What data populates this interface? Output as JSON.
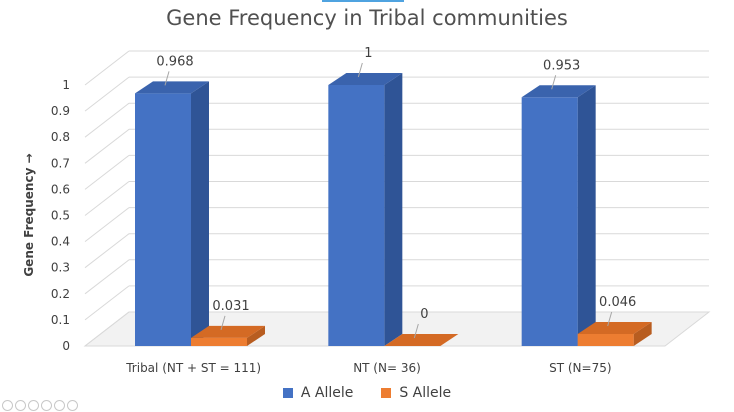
{
  "chart_data": {
    "type": "bar",
    "title": "Gene Frequency in Tribal communities",
    "xlabel": "",
    "ylabel": "Gene Frequency →",
    "categories": [
      "Tribal (NT + ST = 111)",
      "NT (N= 36)",
      "ST (N=75)"
    ],
    "series": [
      {
        "name": "A Allele",
        "values": [
          0.968,
          1,
          0.953
        ],
        "labels": [
          "0.968",
          "1",
          "0.953"
        ]
      },
      {
        "name": "S Allele",
        "values": [
          0.031,
          0,
          0.046
        ],
        "labels": [
          "0.031",
          "0",
          "0.046"
        ]
      }
    ],
    "ylim": [
      0,
      1
    ],
    "yticks": [
      "0",
      "0.1",
      "0.2",
      "0.3",
      "0.4",
      "0.5",
      "0.6",
      "0.7",
      "0.8",
      "0.9",
      "1"
    ],
    "grid": true,
    "legend": "bottom",
    "style": "3d-clustered-column"
  },
  "colors": {
    "A Allele": {
      "front": "#4472c4",
      "side": "#2f5496",
      "top": "#3a63ad"
    },
    "S Allele": {
      "front": "#ed7d31",
      "side": "#b85d20",
      "top": "#d46a24"
    },
    "grid": "#d9d9d9",
    "text": "#404040"
  }
}
